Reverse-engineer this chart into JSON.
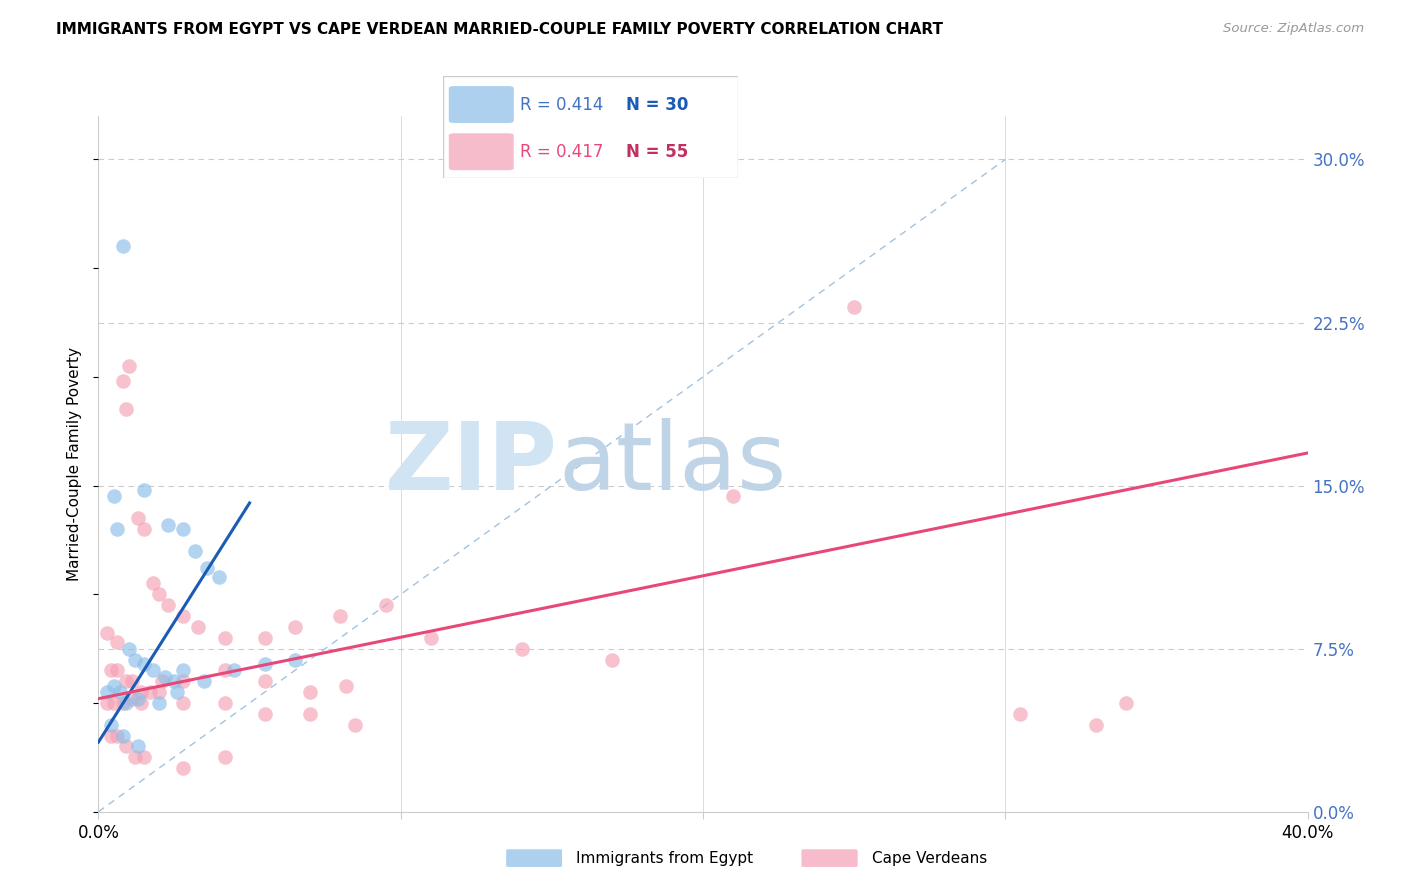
{
  "title": "IMMIGRANTS FROM EGYPT VS CAPE VERDEAN MARRIED-COUPLE FAMILY POVERTY CORRELATION CHART",
  "source": "Source: ZipAtlas.com",
  "ylabel": "Married-Couple Family Poverty",
  "ytick_vals": [
    0.0,
    7.5,
    15.0,
    22.5,
    30.0
  ],
  "xlim": [
    0.0,
    40.0
  ],
  "ylim": [
    0.0,
    32.0
  ],
  "legend_egypt_r": "R = 0.414",
  "legend_egypt_n": "N = 30",
  "legend_cape_r": "R = 0.417",
  "legend_cape_n": "N = 55",
  "color_egypt": "#8BBDE8",
  "color_cape": "#F4A0B5",
  "color_egypt_line": "#1A5CB5",
  "color_cape_line": "#E84878",
  "color_diag": "#99BBDD",
  "egypt_line_x0": 0.0,
  "egypt_line_y0": 3.2,
  "egypt_line_x1": 5.0,
  "egypt_line_y1": 14.2,
  "cape_line_x0": 0.0,
  "cape_line_y0": 5.2,
  "cape_line_x1": 40.0,
  "cape_line_y1": 16.5,
  "egypt_points": [
    [
      0.8,
      26.0
    ],
    [
      1.5,
      14.8
    ],
    [
      2.3,
      13.2
    ],
    [
      2.8,
      13.0
    ],
    [
      3.2,
      12.0
    ],
    [
      3.6,
      11.2
    ],
    [
      4.0,
      10.8
    ],
    [
      0.5,
      14.5
    ],
    [
      0.6,
      13.0
    ],
    [
      1.0,
      7.5
    ],
    [
      1.2,
      7.0
    ],
    [
      1.5,
      6.8
    ],
    [
      1.8,
      6.5
    ],
    [
      2.2,
      6.2
    ],
    [
      2.5,
      6.0
    ],
    [
      2.8,
      6.5
    ],
    [
      3.5,
      6.0
    ],
    [
      4.5,
      6.5
    ],
    [
      5.5,
      6.8
    ],
    [
      6.5,
      7.0
    ],
    [
      0.3,
      5.5
    ],
    [
      0.5,
      5.8
    ],
    [
      0.7,
      5.5
    ],
    [
      0.9,
      5.0
    ],
    [
      1.3,
      5.2
    ],
    [
      2.0,
      5.0
    ],
    [
      2.6,
      5.5
    ],
    [
      0.4,
      4.0
    ],
    [
      0.8,
      3.5
    ],
    [
      1.3,
      3.0
    ]
  ],
  "cape_points": [
    [
      0.3,
      8.2
    ],
    [
      0.6,
      7.8
    ],
    [
      0.8,
      19.8
    ],
    [
      0.9,
      18.5
    ],
    [
      1.0,
      20.5
    ],
    [
      1.3,
      13.5
    ],
    [
      1.5,
      13.0
    ],
    [
      1.8,
      10.5
    ],
    [
      2.0,
      10.0
    ],
    [
      2.3,
      9.5
    ],
    [
      2.8,
      9.0
    ],
    [
      3.3,
      8.5
    ],
    [
      4.2,
      8.0
    ],
    [
      5.5,
      8.0
    ],
    [
      6.5,
      8.5
    ],
    [
      8.0,
      9.0
    ],
    [
      9.5,
      9.5
    ],
    [
      11.0,
      8.0
    ],
    [
      14.0,
      7.5
    ],
    [
      17.0,
      7.0
    ],
    [
      21.0,
      14.5
    ],
    [
      0.4,
      6.5
    ],
    [
      0.6,
      6.5
    ],
    [
      0.9,
      6.0
    ],
    [
      1.1,
      6.0
    ],
    [
      1.4,
      5.5
    ],
    [
      1.7,
      5.5
    ],
    [
      2.1,
      6.0
    ],
    [
      2.8,
      6.0
    ],
    [
      4.2,
      6.5
    ],
    [
      5.5,
      6.0
    ],
    [
      7.0,
      5.5
    ],
    [
      8.2,
      5.8
    ],
    [
      0.3,
      5.0
    ],
    [
      0.5,
      5.0
    ],
    [
      0.8,
      5.0
    ],
    [
      1.1,
      5.2
    ],
    [
      1.4,
      5.0
    ],
    [
      2.0,
      5.5
    ],
    [
      2.8,
      5.0
    ],
    [
      4.2,
      5.0
    ],
    [
      5.5,
      4.5
    ],
    [
      7.0,
      4.5
    ],
    [
      8.5,
      4.0
    ],
    [
      0.4,
      3.5
    ],
    [
      0.6,
      3.5
    ],
    [
      0.9,
      3.0
    ],
    [
      1.2,
      2.5
    ],
    [
      1.5,
      2.5
    ],
    [
      2.8,
      2.0
    ],
    [
      4.2,
      2.5
    ],
    [
      25.0,
      23.2
    ],
    [
      30.5,
      4.5
    ],
    [
      34.0,
      5.0
    ],
    [
      33.0,
      4.0
    ]
  ]
}
